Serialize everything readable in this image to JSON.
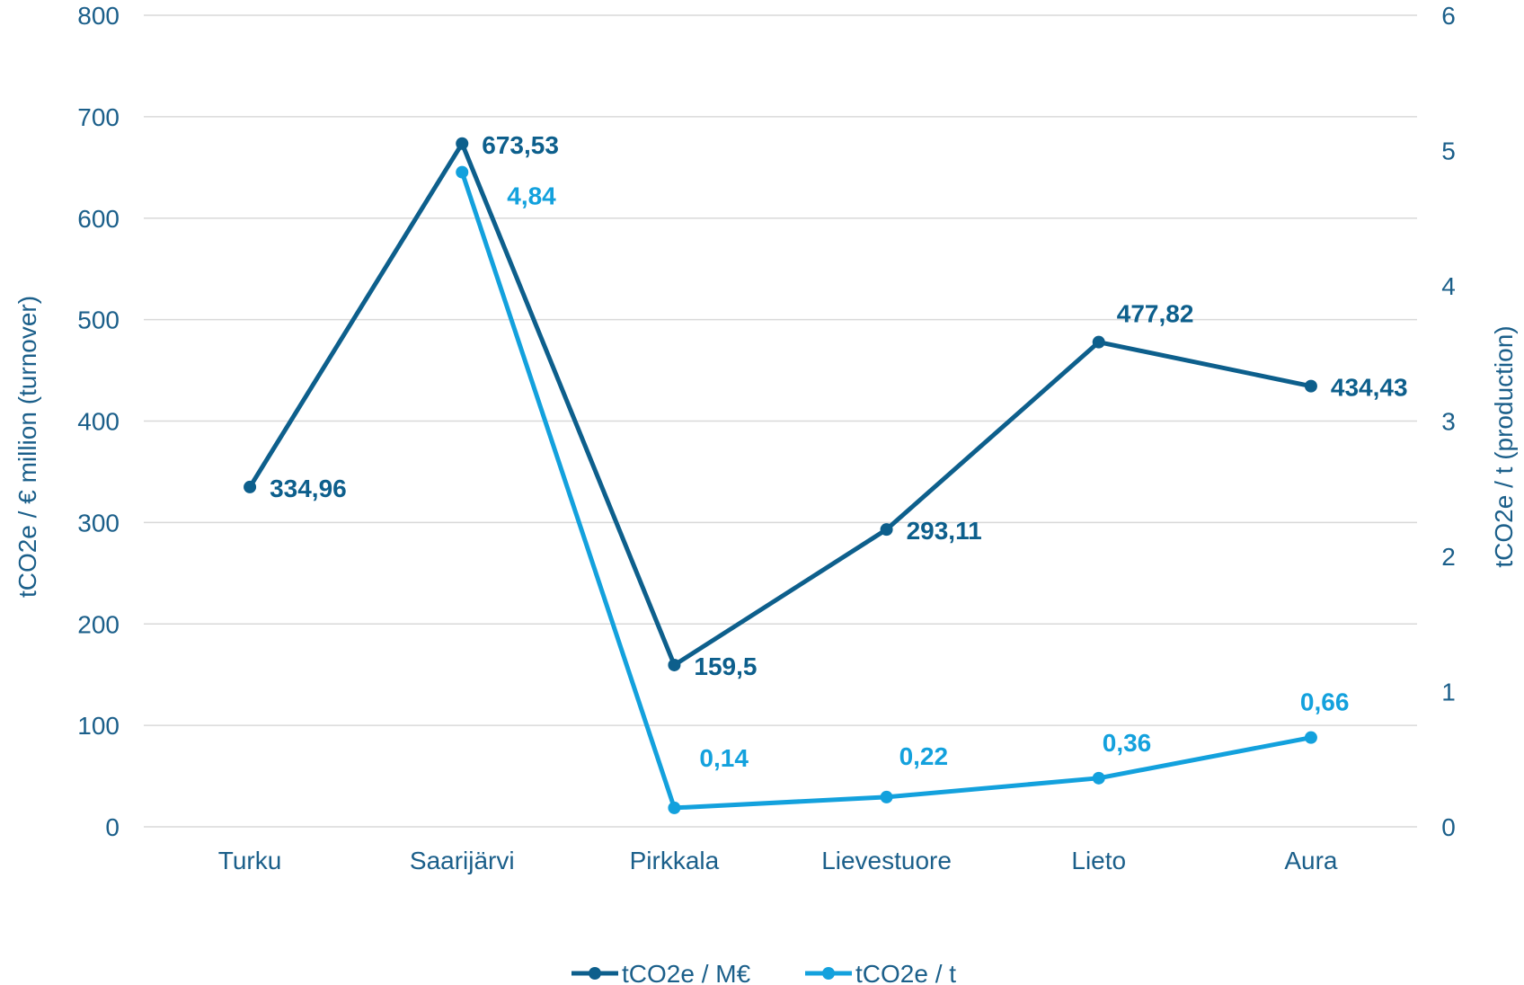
{
  "chart_data": {
    "type": "line",
    "categories": [
      "Turku",
      "Saarijärvi",
      "Pirkkala",
      "Lievestuore",
      "Lieto",
      "Aura"
    ],
    "ylabel_left": "tCO2e / € million (turnover)",
    "ylabel_right": "tCO2e / t (production)",
    "y_left_range": [
      0,
      800
    ],
    "y_left_ticks": [
      "0",
      "100",
      "200",
      "300",
      "400",
      "500",
      "600",
      "700",
      "800"
    ],
    "y_right_range": [
      0,
      6
    ],
    "y_right_ticks": [
      "0",
      "1",
      "2",
      "3",
      "4",
      "5",
      "6"
    ],
    "grid": true,
    "legend_position": "bottom",
    "series": [
      {
        "name": "tCO2e / M€",
        "axis": "left",
        "color": "#0d5f8c",
        "values": [
          334.96,
          673.53,
          159.5,
          293.11,
          477.82,
          434.43
        ],
        "labels": [
          "334,96",
          "673,53",
          "159,5",
          "293,11",
          "477,82",
          "434,43"
        ]
      },
      {
        "name": "tCO2e / t",
        "axis": "right",
        "color": "#13a1dd",
        "values": [
          null,
          4.84,
          0.14,
          0.22,
          0.36,
          0.66
        ],
        "labels": [
          null,
          "4,84",
          "0,14",
          "0,22",
          "0,36",
          "0,66"
        ]
      }
    ]
  }
}
